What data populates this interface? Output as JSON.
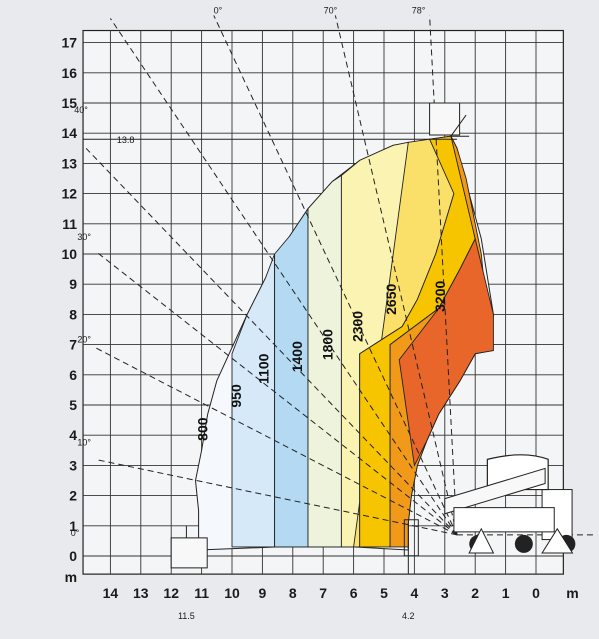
{
  "chart_data": {
    "type": "area",
    "xlabel": "m",
    "ylabel": "m",
    "x_ticks": [
      14,
      13,
      12,
      11,
      10,
      9,
      8,
      7,
      6,
      5,
      4,
      3,
      2,
      1,
      0
    ],
    "y_ticks": [
      0,
      1,
      2,
      3,
      4,
      5,
      6,
      7,
      8,
      9,
      10,
      11,
      12,
      13,
      14,
      15,
      16,
      17
    ],
    "xlim": [
      14.9,
      -0.9
    ],
    "ylim": [
      -0.6,
      17.4
    ],
    "x_unit": "m",
    "y_unit": "m",
    "angle_labels": [
      {
        "text": "0°",
        "angle": 0
      },
      {
        "text": "10°",
        "angle": 10
      },
      {
        "text": "20°",
        "angle": 20
      },
      {
        "text": "30°",
        "angle": 30
      },
      {
        "text": "40°",
        "angle": 40
      },
      {
        "text": "0°",
        "angle": 0
      },
      {
        "text": "70°",
        "angle": 70
      },
      {
        "text": "78°",
        "angle": 78
      }
    ],
    "annotations": {
      "max_height": "13.8",
      "max_reach": "11.5",
      "min_reach": "4.2"
    },
    "series": [
      {
        "name": "800",
        "color": "#f5f8fc"
      },
      {
        "name": "950",
        "color": "#d6e9f8"
      },
      {
        "name": "1100",
        "color": "#b4daf3"
      },
      {
        "name": "1400",
        "color": "#eef4dc"
      },
      {
        "name": "1800",
        "color": "#fbf3b1"
      },
      {
        "name": "2300",
        "color": "#fae068"
      },
      {
        "name": "2650",
        "color": "#f7c400"
      },
      {
        "name": "3200_outer",
        "color": "#f19a1a"
      },
      {
        "name": "3200",
        "color": "#e8662a"
      }
    ]
  }
}
